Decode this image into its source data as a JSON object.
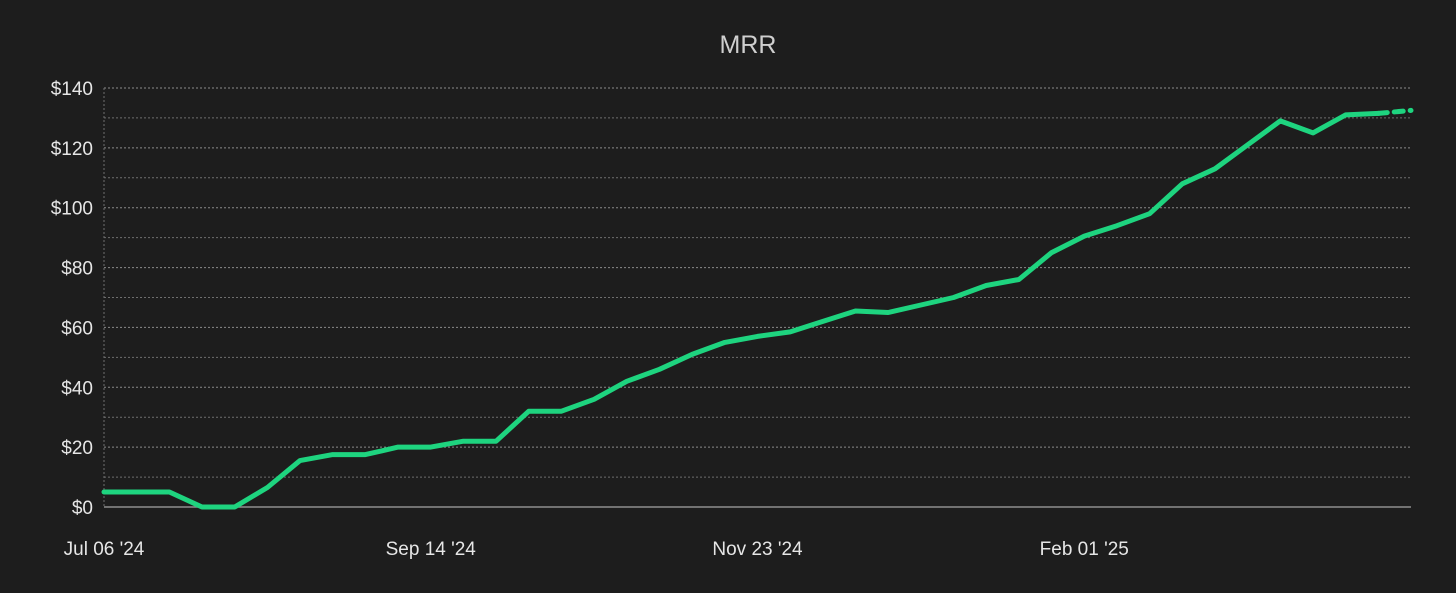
{
  "chart_data": {
    "type": "line",
    "title": "MRR",
    "xlabel": "",
    "ylabel": "",
    "grid": true,
    "ylim": [
      0,
      140
    ],
    "yticks": [
      0,
      20,
      40,
      60,
      80,
      100,
      120,
      140
    ],
    "ytick_labels": [
      "$0",
      "$20",
      "$40",
      "$60",
      "$80",
      "$100",
      "$120",
      "$140"
    ],
    "xlim": [
      "2024-07-06",
      "2025-04-12"
    ],
    "xticks": [
      "2024-07-06",
      "2024-09-14",
      "2024-11-23",
      "2025-02-01"
    ],
    "xtick_labels": [
      "Jul 06 '24",
      "Sep 14 '24",
      "Nov 23 '24",
      "Feb 01 '25"
    ],
    "colors": {
      "line": "#1ed47f",
      "background": "#1d1d1d",
      "text": "#e6e6e6",
      "title": "#cfcfcf"
    },
    "series": [
      {
        "x": [
          "2024-07-06",
          "2024-07-13",
          "2024-07-20",
          "2024-07-27",
          "2024-08-03",
          "2024-08-10",
          "2024-08-17",
          "2024-08-24",
          "2024-08-31",
          "2024-09-07",
          "2024-09-14",
          "2024-09-21",
          "2024-09-28",
          "2024-10-05",
          "2024-10-12",
          "2024-10-19",
          "2024-10-26",
          "2024-11-02",
          "2024-11-09",
          "2024-11-16",
          "2024-11-23",
          "2024-11-30",
          "2024-12-07",
          "2024-12-14",
          "2024-12-21",
          "2024-12-28",
          "2025-01-04",
          "2025-01-11",
          "2025-01-18",
          "2025-01-25",
          "2025-02-01",
          "2025-02-08",
          "2025-02-15",
          "2025-02-22",
          "2025-03-01",
          "2025-03-08",
          "2025-03-15",
          "2025-03-22",
          "2025-03-29",
          "2025-04-05",
          "2025-04-12"
        ],
        "values": [
          5,
          5,
          5,
          0,
          0,
          6.5,
          15.5,
          17.5,
          17.5,
          20,
          20,
          22,
          22,
          32,
          32,
          36,
          42,
          46,
          51,
          55,
          57,
          58.5,
          62,
          65.5,
          65,
          67.5,
          70,
          74,
          76,
          85,
          90.5,
          94,
          98,
          108,
          113,
          121,
          129,
          125,
          131,
          131.5,
          132.5
        ],
        "projected_from_index": 39
      }
    ]
  }
}
